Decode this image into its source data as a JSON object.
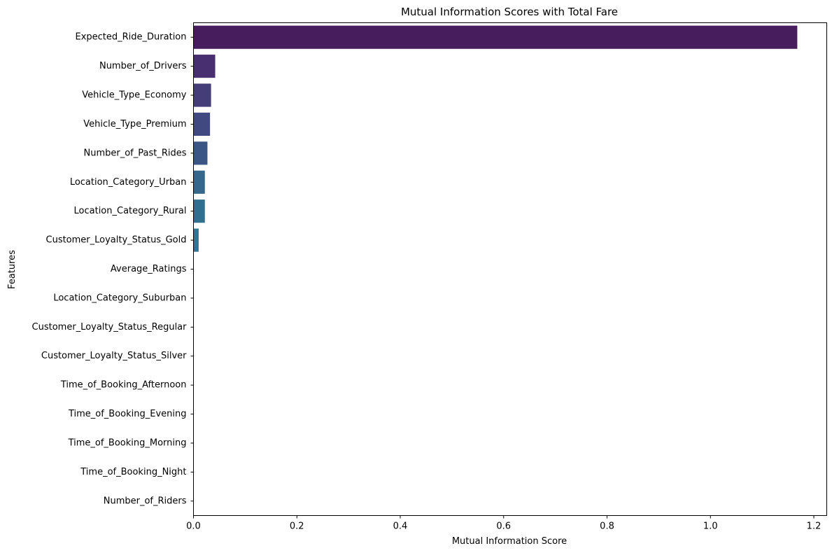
{
  "chart_data": {
    "type": "bar",
    "orientation": "horizontal",
    "title": "Mutual Information Scores with Total Fare",
    "xlabel": "Mutual Information Score",
    "ylabel": "Features",
    "xlim": [
      0,
      1.225
    ],
    "xticks": [
      0.0,
      0.2,
      0.4,
      0.6,
      0.8,
      1.0,
      1.2
    ],
    "xtick_labels": [
      "0.0",
      "0.2",
      "0.4",
      "0.6",
      "0.8",
      "1.0",
      "1.2"
    ],
    "grid": false,
    "palette": "viridis",
    "categories": [
      "Expected_Ride_Duration",
      "Number_of_Drivers",
      "Vehicle_Type_Economy",
      "Vehicle_Type_Premium",
      "Number_of_Past_Rides",
      "Location_Category_Urban",
      "Location_Category_Rural",
      "Customer_Loyalty_Status_Gold",
      "Average_Ratings",
      "Location_Category_Suburban",
      "Customer_Loyalty_Status_Regular",
      "Customer_Loyalty_Status_Silver",
      "Time_of_Booking_Afternoon",
      "Time_of_Booking_Evening",
      "Time_of_Booking_Morning",
      "Time_of_Booking_Night",
      "Number_of_Riders"
    ],
    "values": [
      1.168,
      0.042,
      0.034,
      0.032,
      0.027,
      0.022,
      0.022,
      0.01,
      0,
      0,
      0,
      0,
      0,
      0,
      0,
      0,
      0
    ],
    "colors": [
      "#471d5e",
      "#482f6f",
      "#453d78",
      "#404a80",
      "#3b5585",
      "#35688b",
      "#306f8d",
      "#2c788e",
      "#287f8e",
      "#25888e",
      "#21918c",
      "#1f9a8a",
      "#22a384",
      "#2eab7d",
      "#3fb274",
      "#55ba67",
      "#6fc15a"
    ]
  }
}
